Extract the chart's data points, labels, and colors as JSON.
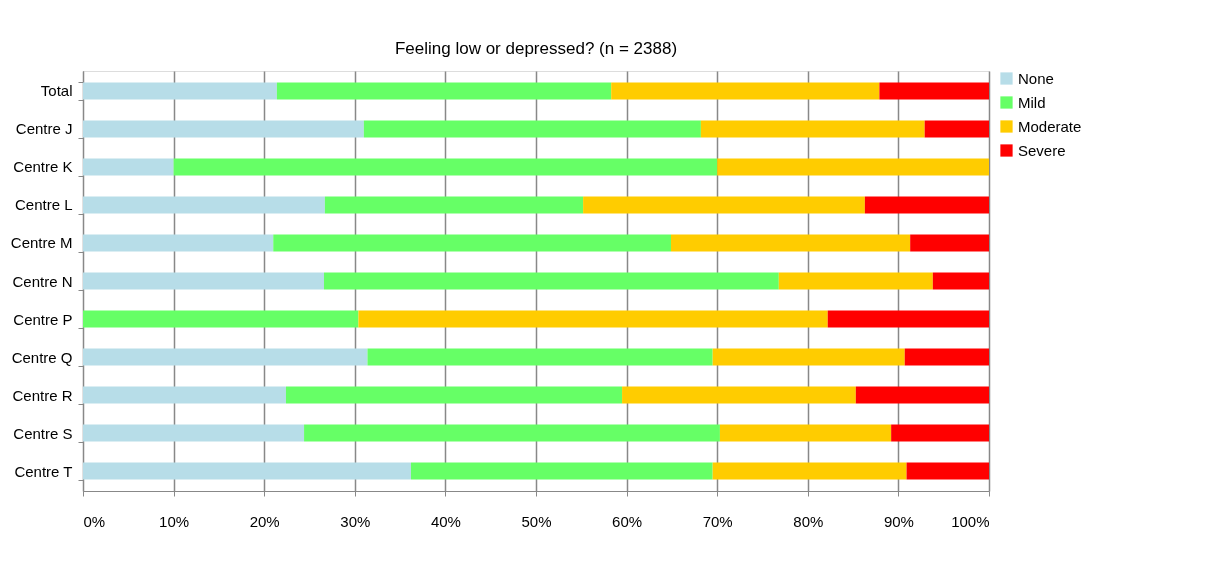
{
  "chart_data": {
    "type": "bar",
    "orientation": "horizontal",
    "stacked": true,
    "title": "Feeling low or depressed? (n = 2388)",
    "categories": [
      "Total",
      "Centre J",
      "Centre K",
      "Centre L",
      "Centre M",
      "Centre N",
      "Centre P",
      "Centre Q",
      "Centre R",
      "Centre S",
      "Centre T"
    ],
    "series": [
      {
        "name": "None",
        "color": "#b7dde8",
        "values": [
          21.4,
          31.0,
          10,
          26.7,
          21.0,
          26.6,
          0,
          31.4,
          22.4,
          24.4,
          36.2
        ]
      },
      {
        "name": "Mild",
        "color": "#66ff66",
        "values": [
          36.9,
          37.2,
          60,
          28.5,
          43.9,
          50.2,
          30.4,
          38.1,
          37.1,
          45.9,
          33.3
        ]
      },
      {
        "name": "Moderate",
        "color": "#ffcc00",
        "values": [
          29.6,
          24.7,
          30,
          31.1,
          26.4,
          17.0,
          51.8,
          21.2,
          25.8,
          18.9,
          21.4
        ]
      },
      {
        "name": "Severe",
        "color": "#ff0000",
        "values": [
          12.1,
          7.1,
          0,
          13.7,
          8.7,
          6.2,
          17.8,
          9.3,
          14.7,
          10.8,
          9.1
        ]
      }
    ],
    "xlim": [
      0,
      100
    ],
    "xticks": [
      {
        "value": 0,
        "label": "0%"
      },
      {
        "value": 10,
        "label": "10%"
      },
      {
        "value": 20,
        "label": "20%"
      },
      {
        "value": 30,
        "label": "30%"
      },
      {
        "value": 40,
        "label": "40%"
      },
      {
        "value": 50,
        "label": "50%"
      },
      {
        "value": 60,
        "label": "60%"
      },
      {
        "value": 70,
        "label": "70%"
      },
      {
        "value": 80,
        "label": "80%"
      },
      {
        "value": 90,
        "label": "90%"
      },
      {
        "value": 100,
        "label": "100%"
      }
    ],
    "grid": "x",
    "legend": "right"
  }
}
